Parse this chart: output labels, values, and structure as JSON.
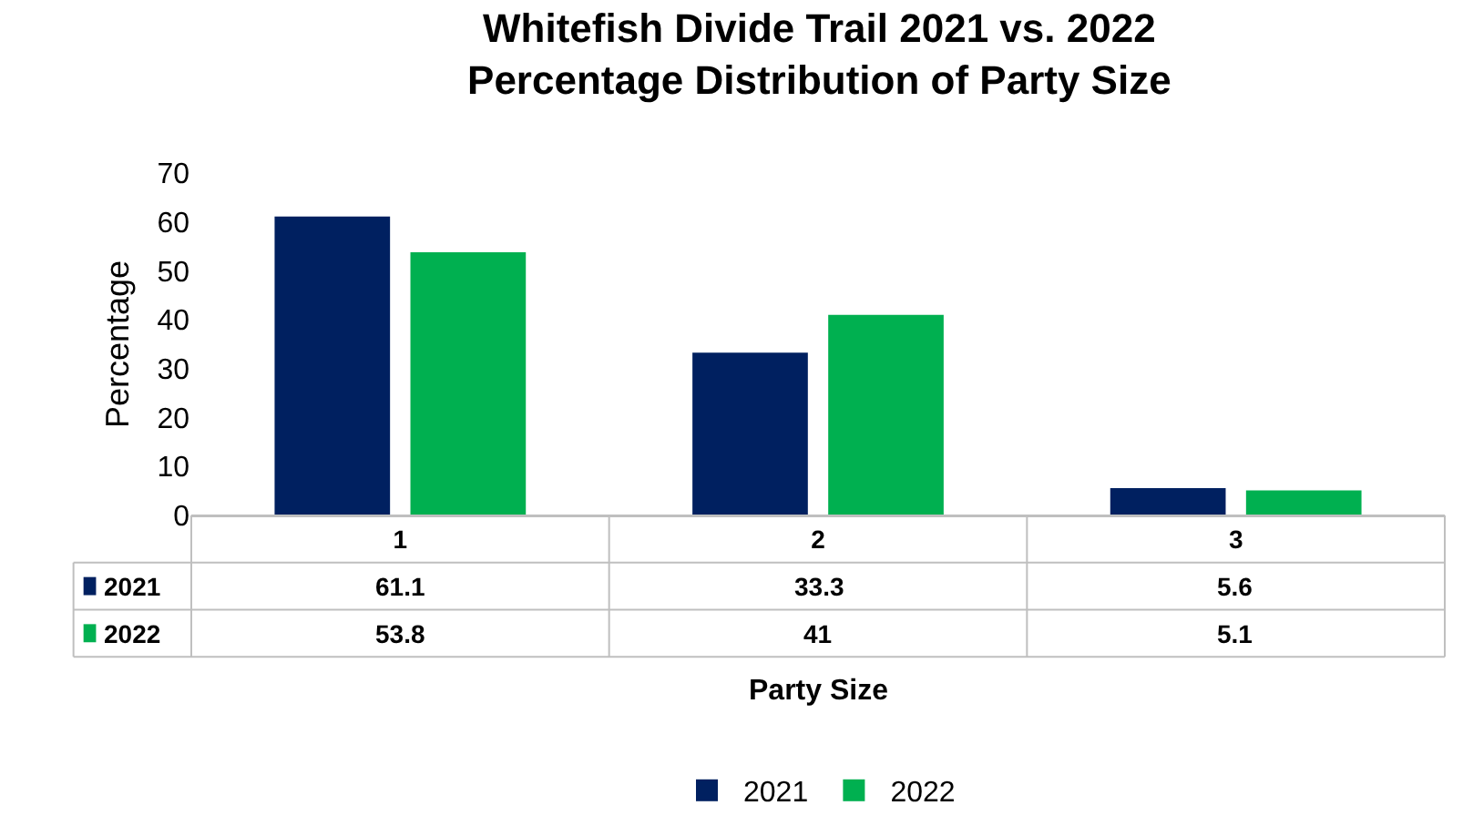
{
  "chart_data": {
    "type": "bar",
    "title": "Whitefish Divide Trail 2021 vs. 2022\nPercentage Distribution of Party Size",
    "xlabel": "Party Size",
    "ylabel": "Percentage",
    "categories": [
      "1",
      "2",
      "3"
    ],
    "series": [
      {
        "name": "2021",
        "color": "#002060",
        "values": [
          61.1,
          33.3,
          5.6
        ]
      },
      {
        "name": "2022",
        "color": "#00b050",
        "values": [
          53.8,
          41,
          5.1
        ]
      }
    ],
    "ylim": [
      0,
      70
    ],
    "yticks": [
      0,
      10,
      20,
      30,
      40,
      50,
      60,
      70
    ],
    "legend": "bottom",
    "data_labels": true
  }
}
